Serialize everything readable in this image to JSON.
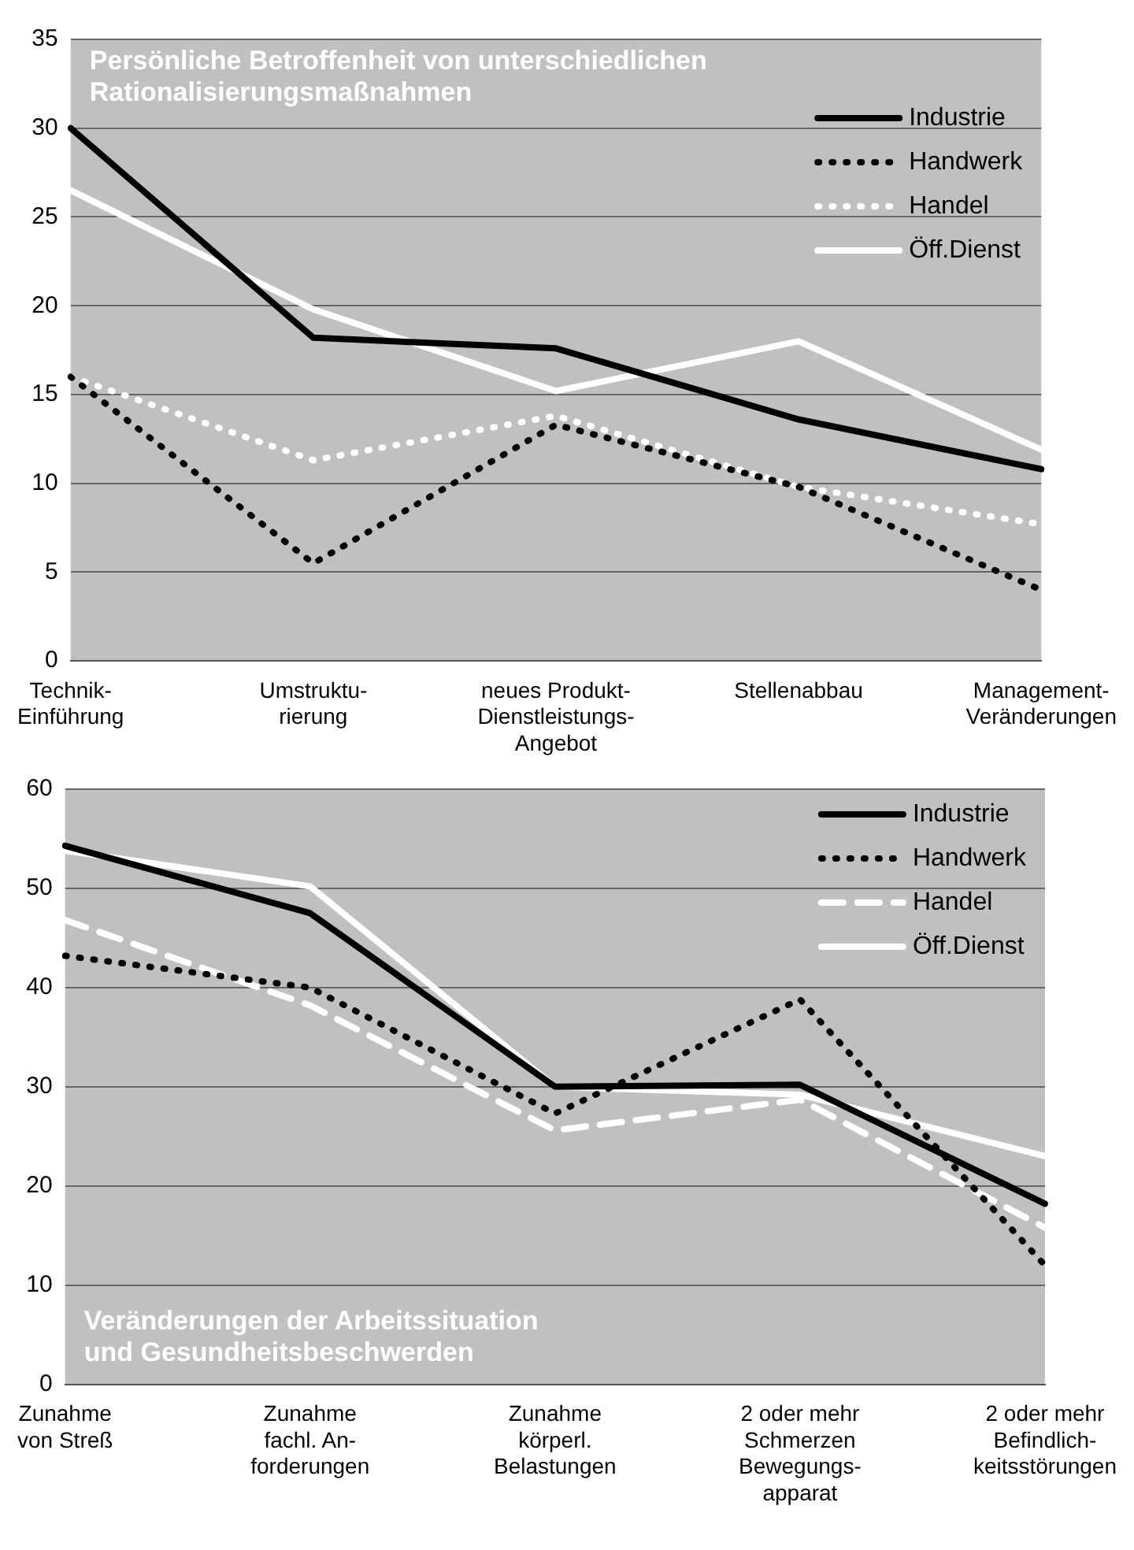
{
  "chart_data": [
    {
      "type": "line",
      "title": "Persönliche Betroffenheit von unterschiedlichen\nRationalisierungsmaßnahmen",
      "categories": [
        "Technik-\nEinführung",
        "Umstruktu-\nrierung",
        "neues Produkt-\nDienstleistungs-\nAngebot",
        "Stellenabbau",
        "Management-\nVeränderungen"
      ],
      "series": [
        {
          "name": "Industrie",
          "color": "#000000",
          "line_style": "solid",
          "values": [
            30,
            18.2,
            17.6,
            13.6,
            10.8
          ]
        },
        {
          "name": "Handwerk",
          "color": "#000000",
          "line_style": "dotted",
          "values": [
            16,
            5.5,
            13.3,
            9.8,
            4
          ]
        },
        {
          "name": "Handel",
          "color": "#ffffff",
          "line_style": "dotted",
          "values": [
            16,
            11.3,
            13.8,
            9.8,
            7.7
          ]
        },
        {
          "name": "Öff.Dienst",
          "color": "#ffffff",
          "line_style": "solid",
          "values": [
            26.5,
            19.8,
            15.2,
            18,
            11.9
          ]
        }
      ],
      "ylim": [
        0,
        35
      ],
      "yticks": [
        0,
        5,
        10,
        15,
        20,
        25,
        30,
        35
      ],
      "grid": "y",
      "legend": "top right",
      "marker": "none"
    },
    {
      "type": "line",
      "title": "Veränderungen der Arbeitssituation\nund Gesundheitsbeschwerden",
      "categories": [
        "Zunahme\nvon Streß",
        "Zunahme\nfachl. An-\nforderungen",
        "Zunahme\nkörperl.\nBelastungen",
        "2 oder mehr\nSchmerzen\nBewegungs-\napparat",
        "2 oder mehr\nBefindlich-\nkeitsstörungen"
      ],
      "series": [
        {
          "name": "Industrie",
          "color": "#000000",
          "line_style": "solid",
          "values": [
            54.3,
            47.5,
            30,
            30.2,
            18.2
          ]
        },
        {
          "name": "Handwerk",
          "color": "#000000",
          "line_style": "dotted",
          "values": [
            43.2,
            40,
            27.3,
            38.8,
            12
          ]
        },
        {
          "name": "Handel",
          "color": "#ffffff",
          "line_style": "dashed",
          "values": [
            46.8,
            38.2,
            25.6,
            28.7,
            15.8
          ]
        },
        {
          "name": "Öff.Dienst",
          "color": "#ffffff",
          "line_style": "solid",
          "values": [
            53.8,
            50.2,
            30,
            29.2,
            23
          ]
        }
      ],
      "ylim": [
        0,
        60
      ],
      "yticks": [
        0,
        10,
        20,
        30,
        40,
        50,
        60
      ],
      "grid": "y",
      "legend": "top right",
      "marker": "none"
    }
  ]
}
